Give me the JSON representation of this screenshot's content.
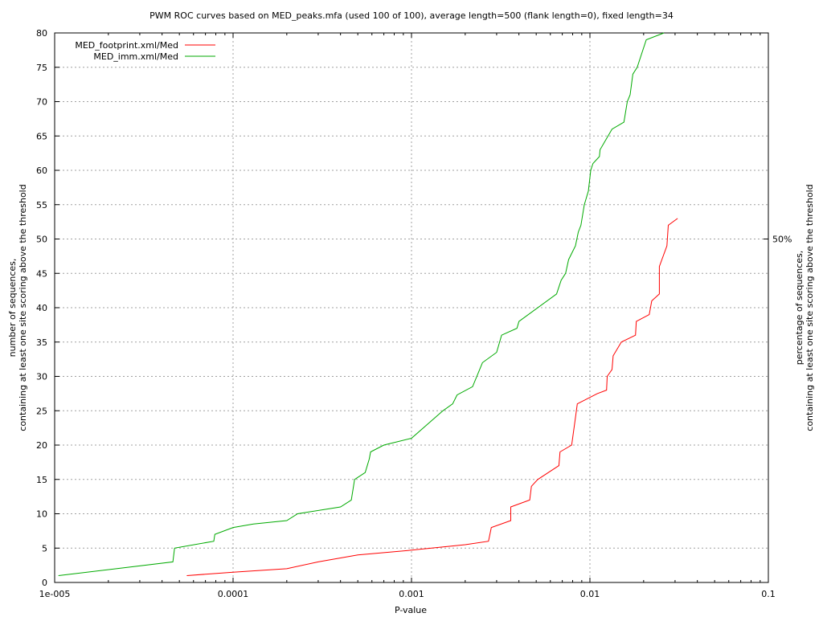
{
  "chart_data": {
    "type": "line",
    "title": "PWM ROC curves based on MED_peaks.mfa (used 100 of 100), average length=500 (flank length=0), fixed length=34",
    "xlabel": "P-value",
    "ylabel_line1": "number of sequences,",
    "ylabel_line2": "containing at least one site scoring above the threshold",
    "y2label_line1": "percentage of sequences,",
    "y2label_line2": "containing at least one site scoring above the threshold",
    "x_scale": "log",
    "xlim": [
      1e-05,
      0.1
    ],
    "ylim": [
      0,
      80
    ],
    "x_ticks": [
      {
        "value": 1e-05,
        "label": "1e-005"
      },
      {
        "value": 0.0001,
        "label": "0.0001"
      },
      {
        "value": 0.001,
        "label": "0.001"
      },
      {
        "value": 0.01,
        "label": "0.01"
      },
      {
        "value": 0.1,
        "label": "0.1"
      }
    ],
    "y_ticks": [
      0,
      5,
      10,
      15,
      20,
      25,
      30,
      35,
      40,
      45,
      50,
      55,
      60,
      65,
      70,
      75,
      80
    ],
    "y2_tick": {
      "value": 50,
      "label": "50%"
    },
    "grid": true,
    "legend_position": "top-left",
    "series": [
      {
        "name": "MED_footprint.xml/Med",
        "color": "#ff0000",
        "points": [
          [
            5.5e-05,
            1
          ],
          [
            0.0001,
            1.5
          ],
          [
            0.0002,
            2
          ],
          [
            0.0003,
            3
          ],
          [
            0.0005,
            4
          ],
          [
            0.001,
            4.7
          ],
          [
            0.002,
            5.5
          ],
          [
            0.0027,
            6
          ],
          [
            0.0028,
            8
          ],
          [
            0.0036,
            9
          ],
          [
            0.0036,
            11
          ],
          [
            0.0046,
            12
          ],
          [
            0.0047,
            14
          ],
          [
            0.0051,
            15
          ],
          [
            0.0067,
            17
          ],
          [
            0.0068,
            19
          ],
          [
            0.0079,
            20
          ],
          [
            0.0083,
            24
          ],
          [
            0.0085,
            26
          ],
          [
            0.011,
            27.5
          ],
          [
            0.0124,
            28
          ],
          [
            0.0125,
            30
          ],
          [
            0.0133,
            31
          ],
          [
            0.0135,
            33
          ],
          [
            0.015,
            35
          ],
          [
            0.018,
            36
          ],
          [
            0.0182,
            38
          ],
          [
            0.0215,
            39
          ],
          [
            0.0222,
            41
          ],
          [
            0.0245,
            42
          ],
          [
            0.0245,
            46
          ],
          [
            0.027,
            49
          ],
          [
            0.0275,
            52
          ],
          [
            0.031,
            53
          ]
        ]
      },
      {
        "name": "MED_imm.xml/Med",
        "color": "#00aa00",
        "points": [
          [
            1.05e-05,
            1
          ],
          [
            4.6e-05,
            3
          ],
          [
            4.7e-05,
            5
          ],
          [
            7.8e-05,
            6
          ],
          [
            7.9e-05,
            7
          ],
          [
            0.0001,
            8
          ],
          [
            0.00013,
            8.5
          ],
          [
            0.0002,
            9
          ],
          [
            0.00023,
            10
          ],
          [
            0.0004,
            11
          ],
          [
            0.00046,
            12
          ],
          [
            0.00048,
            15
          ],
          [
            0.00055,
            16
          ],
          [
            0.00058,
            18
          ],
          [
            0.00059,
            19
          ],
          [
            0.0007,
            20
          ],
          [
            0.001,
            21
          ],
          [
            0.0015,
            25
          ],
          [
            0.0017,
            26
          ],
          [
            0.0018,
            27.3
          ],
          [
            0.0022,
            28.5
          ],
          [
            0.0025,
            32
          ],
          [
            0.003,
            33.5
          ],
          [
            0.0032,
            36
          ],
          [
            0.0039,
            37
          ],
          [
            0.004,
            38
          ],
          [
            0.0065,
            42
          ],
          [
            0.0069,
            44
          ],
          [
            0.0073,
            45
          ],
          [
            0.0076,
            47
          ],
          [
            0.0083,
            49
          ],
          [
            0.0086,
            51
          ],
          [
            0.0089,
            52
          ],
          [
            0.0093,
            55
          ],
          [
            0.0098,
            57
          ],
          [
            0.0101,
            60
          ],
          [
            0.0104,
            61
          ],
          [
            0.0113,
            62
          ],
          [
            0.0114,
            63
          ],
          [
            0.0133,
            66
          ],
          [
            0.0155,
            67
          ],
          [
            0.0162,
            70
          ],
          [
            0.0168,
            71
          ],
          [
            0.0174,
            74
          ],
          [
            0.0184,
            75
          ],
          [
            0.0207,
            79
          ],
          [
            0.026,
            80
          ]
        ]
      }
    ]
  }
}
